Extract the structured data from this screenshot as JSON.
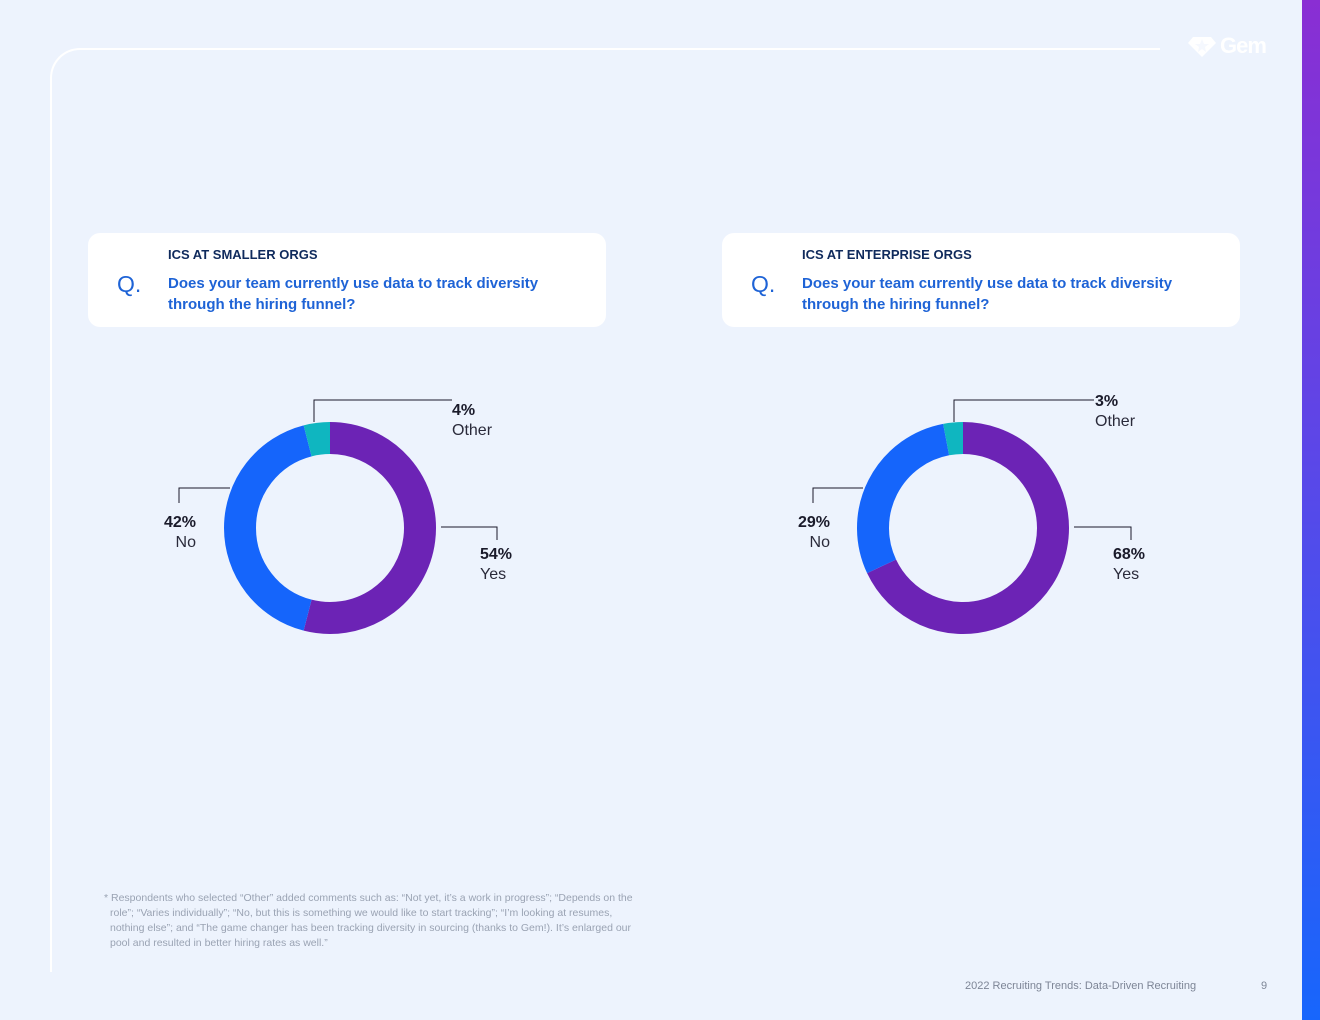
{
  "brand": {
    "logo_text": "Gem",
    "logo_icon": "gem-diamond-icon"
  },
  "colors": {
    "yes": "#6c23b5",
    "no": "#1565fb",
    "other": "#0fb6c0",
    "accent": "#1e63d6"
  },
  "questions": [
    {
      "mark": "Q.",
      "label": "ICS AT SMALLER ORGS",
      "text": "Does your team currently use data to track diversity through the hiring funnel?"
    },
    {
      "mark": "Q.",
      "label": "ICS AT ENTERPRISE ORGS",
      "text": "Does your team currently use data to track diversity through the hiring funnel?"
    }
  ],
  "chart_data": [
    {
      "type": "pie",
      "title": "ICS AT SMALLER ORGS",
      "donut": true,
      "slices": [
        {
          "label": "Yes",
          "value": 54,
          "display": "54%",
          "color": "#6c23b5"
        },
        {
          "label": "No",
          "value": 42,
          "display": "42%",
          "color": "#1565fb"
        },
        {
          "label": "Other",
          "value": 4,
          "display": "4%",
          "color": "#0fb6c0"
        }
      ]
    },
    {
      "type": "pie",
      "title": "ICS AT ENTERPRISE ORGS",
      "donut": true,
      "slices": [
        {
          "label": "Yes",
          "value": 68,
          "display": "68%",
          "color": "#6c23b5"
        },
        {
          "label": "No",
          "value": 29,
          "display": "29%",
          "color": "#1565fb"
        },
        {
          "label": "Other",
          "value": 3,
          "display": "3%",
          "color": "#0fb6c0"
        }
      ]
    }
  ],
  "footnote": "* Respondents who selected “Other” added comments such as: “Not yet, it’s a work in progress”; “Depends on the role”; “Varies individually”; “No, but this is something we would like to start tracking”; “I’m looking at resumes, nothing else”; and “The game changer has been tracking diversity in sourcing (thanks to Gem!). It’s enlarged our pool and resulted in better hiring rates as well.”",
  "footer": {
    "title": "2022 Recruiting Trends: Data-Driven Recruiting",
    "page": "9"
  }
}
